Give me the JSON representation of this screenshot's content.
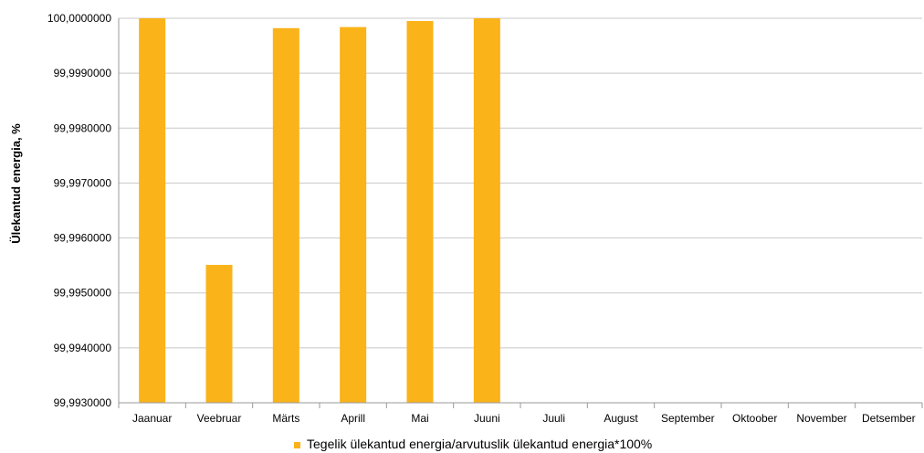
{
  "chart_data": {
    "type": "bar",
    "categories": [
      "Jaanuar",
      "Veebruar",
      "Märts",
      "Aprill",
      "Mai",
      "Juuni",
      "Juuli",
      "August",
      "September",
      "Oktoober",
      "November",
      "Detsember"
    ],
    "series": [
      {
        "name": "Tegelik ülekantud energia/arvutuslik ülekantud energia*100%",
        "values": [
          99.9999998,
          99.99551,
          99.99982,
          99.99984,
          99.99995,
          100.0,
          null,
          null,
          null,
          null,
          null,
          null
        ],
        "color": "#fab319"
      }
    ],
    "title": "",
    "xlabel": "",
    "ylabel": "Ülekantud energia, %",
    "ylim": [
      99.993,
      100.0
    ],
    "yticks": [
      "99,9930000",
      "99,9940000",
      "99,9950000",
      "99,9960000",
      "99,9970000",
      "99,9980000",
      "99,9990000",
      "100,0000000"
    ],
    "grid": true,
    "legend_position": "bottom"
  },
  "colors": {
    "bar": "#fab319",
    "grid": "#c8c8c8",
    "axis": "#9a9a9a"
  }
}
